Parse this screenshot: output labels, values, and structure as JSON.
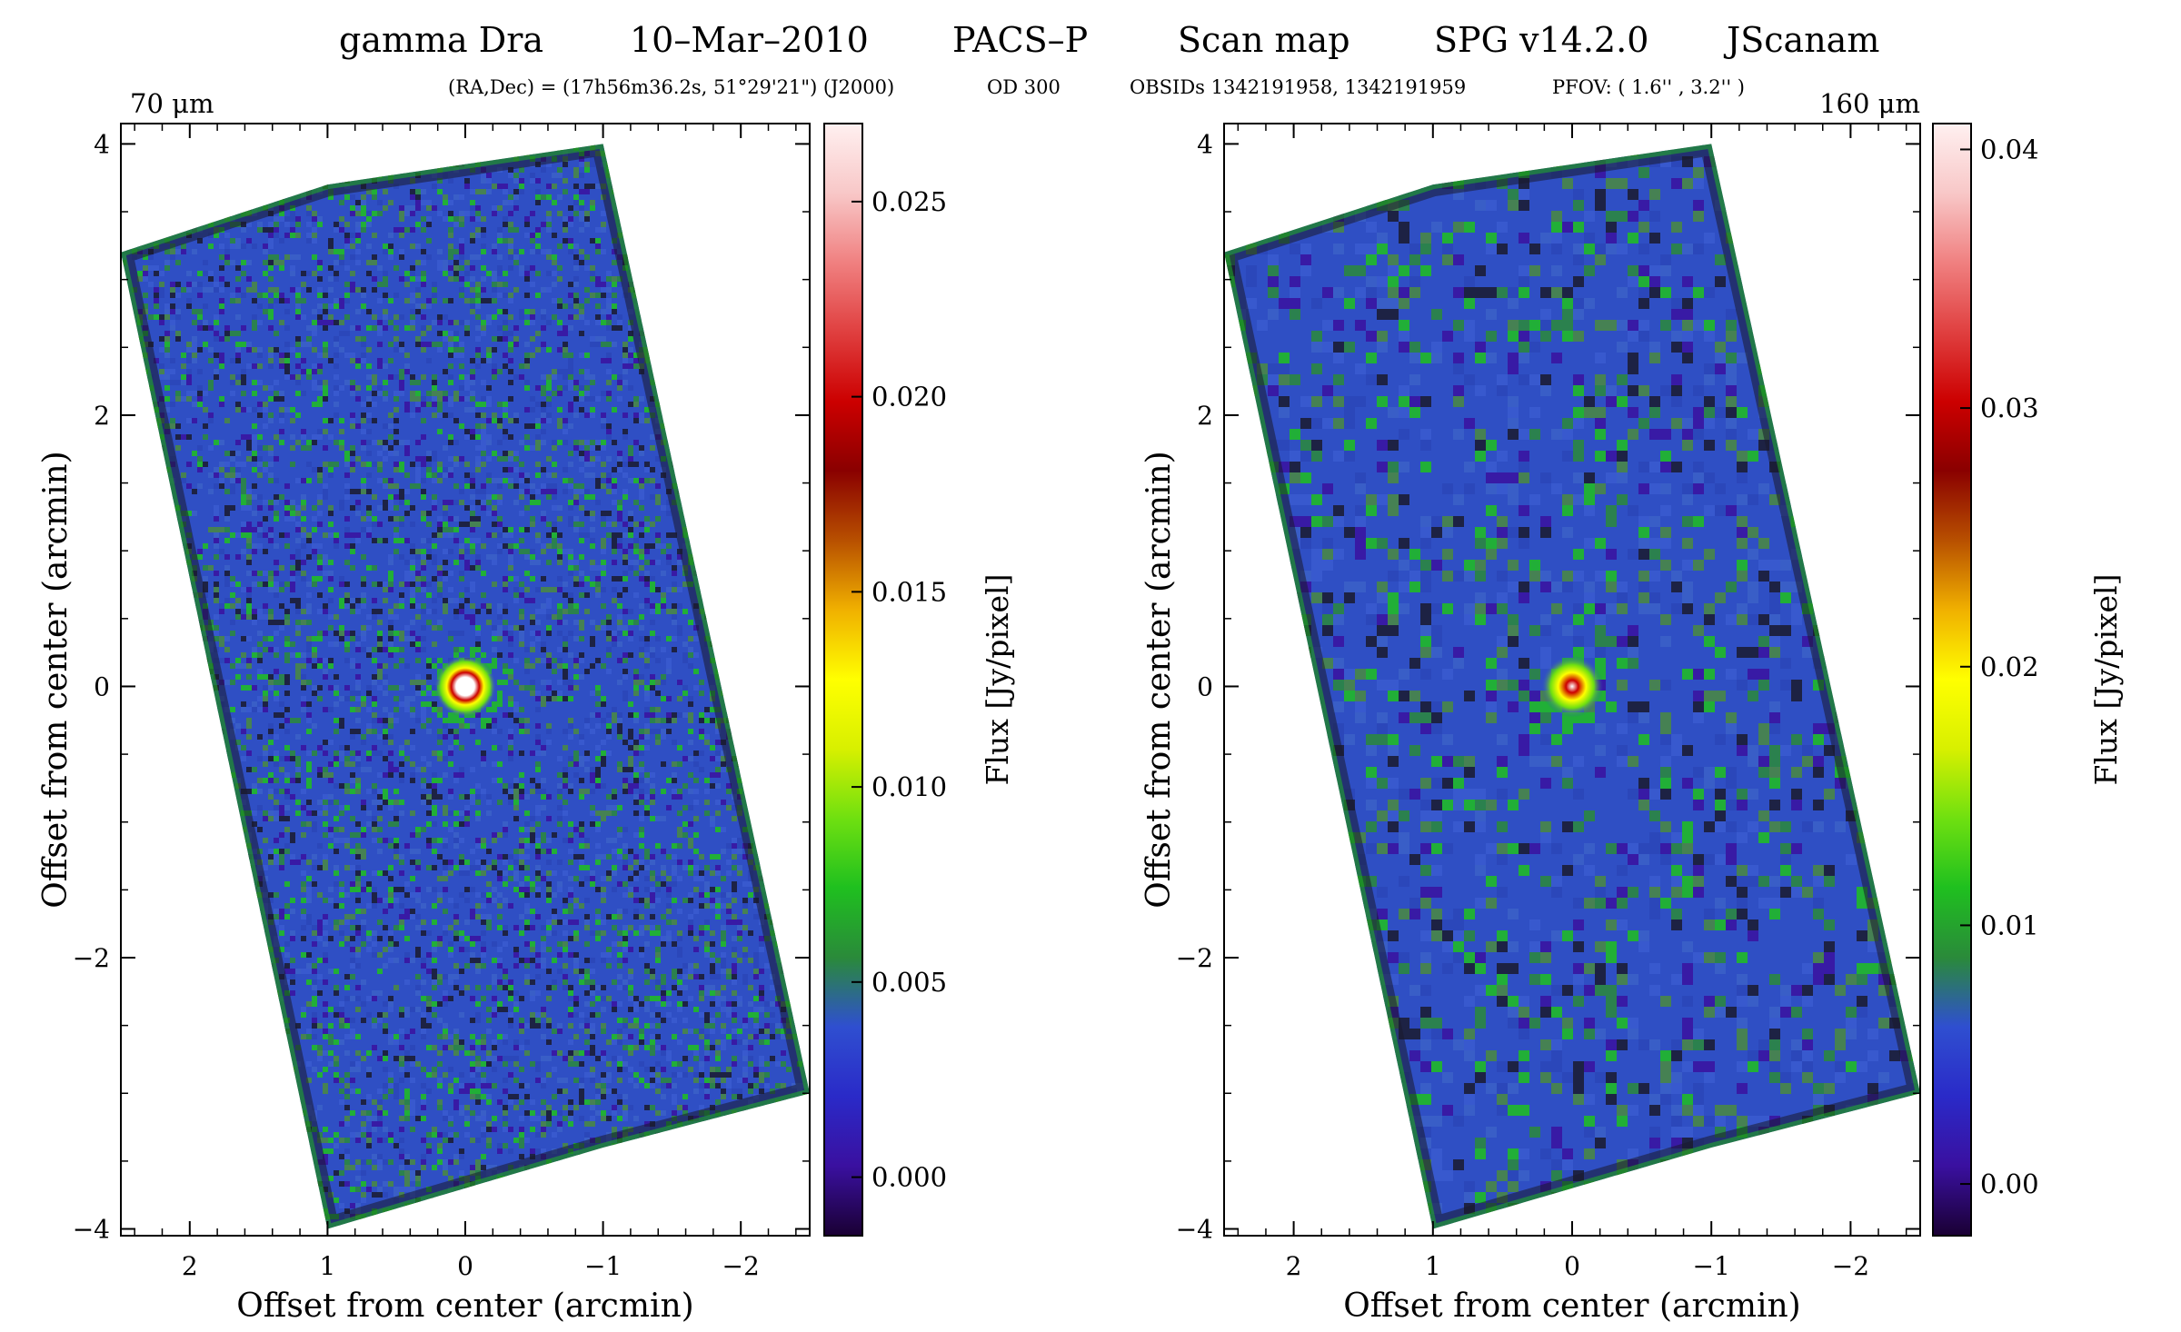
{
  "header": {
    "object": "gamma Dra",
    "date": "10–Mar–2010",
    "instrument": "PACS–P",
    "mode": "Scan map",
    "spg": "SPG v14.2.0",
    "pipeline": "JScanam"
  },
  "subheader": {
    "coords": "(RA,Dec) = (17h56m36.2s, 51°29'21\") (J2000)",
    "od": "OD 300",
    "obsids": "OBSIDs 1342191958, 1342191959",
    "pfov": "PFOV: ( 1.6'' , 3.2'' )"
  },
  "colors": {
    "colormap": [
      "#1a0033",
      "#3a10a0",
      "#2a2ac8",
      "#2f4fd0",
      "#2a8a3a",
      "#1fc01f",
      "#6fe010",
      "#d8f000",
      "#ffff00",
      "#f0b000",
      "#b85000",
      "#8a0000",
      "#cc0000",
      "#e04040",
      "#f08080",
      "#f8c8c8",
      "#fff0f0"
    ],
    "background_map": "#2f4fc4",
    "edge_noise": "#1a1a2e"
  },
  "chart_data": [
    {
      "type": "heatmap",
      "title": "70 μm",
      "xlabel": "Offset from center (arcmin)",
      "ylabel": "Offset from center (arcmin)",
      "xlim": [
        2.5,
        -2.5
      ],
      "ylim": [
        -4.05,
        4.15
      ],
      "x_ticks": [
        2,
        1,
        0,
        -1,
        -2
      ],
      "x_tick_labels": [
        "2",
        "1",
        "0",
        "−1",
        "−2"
      ],
      "y_ticks": [
        -4,
        -2,
        0,
        2,
        4
      ],
      "y_tick_labels": [
        "−4",
        "−2",
        "0",
        "2",
        "4"
      ],
      "colorbar": {
        "label": "Flux [Jy/pixel]",
        "range": [
          -0.0015,
          0.027
        ],
        "ticks": [
          0.0,
          0.005,
          0.01,
          0.015,
          0.02,
          0.025
        ],
        "tick_labels": [
          "0.000",
          "0.005",
          "0.010",
          "0.015",
          "0.020",
          "0.025"
        ]
      },
      "source_position": [
        0.0,
        0.0
      ],
      "map_corners": [
        [
          2.5,
          3.2
        ],
        [
          1.0,
          3.7
        ],
        [
          -1.0,
          4.0
        ],
        [
          -2.5,
          -3.0
        ],
        [
          -1.0,
          -3.4
        ],
        [
          1.0,
          -4.0
        ]
      ]
    },
    {
      "type": "heatmap",
      "title": "160 μm",
      "xlabel": "Offset from center (arcmin)",
      "ylabel": "Offset from center (arcmin)",
      "xlim": [
        2.5,
        -2.5
      ],
      "ylim": [
        -4.05,
        4.15
      ],
      "x_ticks": [
        2,
        1,
        0,
        -1,
        -2
      ],
      "x_tick_labels": [
        "2",
        "1",
        "0",
        "−1",
        "−2"
      ],
      "y_ticks": [
        -4,
        -2,
        0,
        2,
        4
      ],
      "y_tick_labels": [
        "−4",
        "−2",
        "0",
        "2",
        "4"
      ],
      "colorbar": {
        "label": "Flux [Jy/pixel]",
        "range": [
          -0.002,
          0.041
        ],
        "ticks": [
          0.0,
          0.01,
          0.02,
          0.03,
          0.04
        ],
        "tick_labels": [
          "0.00",
          "0.01",
          "0.02",
          "0.03",
          "0.04"
        ]
      },
      "source_position": [
        0.0,
        0.0
      ],
      "map_corners": [
        [
          2.5,
          3.2
        ],
        [
          1.0,
          3.7
        ],
        [
          -1.0,
          4.0
        ],
        [
          -2.5,
          -3.0
        ],
        [
          -1.0,
          -3.4
        ],
        [
          1.0,
          -4.0
        ]
      ]
    }
  ]
}
